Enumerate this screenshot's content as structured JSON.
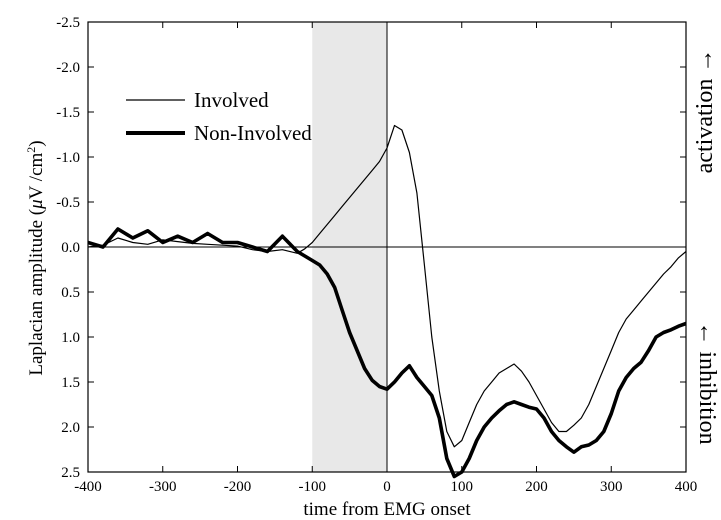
{
  "chart_data": {
    "type": "line",
    "xlabel": "time from EMG onset",
    "ylabel_prefix": "Laplacian amplitude (",
    "ylabel_mu": "μ",
    "ylabel_unit": "V /cm",
    "ylabel_sup": "2",
    "ylabel_suffix": ")",
    "xlim": [
      -400,
      400
    ],
    "ylim": [
      2.5,
      -2.5
    ],
    "y_inverted": true,
    "x_ticks": [
      "-400",
      "-300",
      "-200",
      "-100",
      "0",
      "100",
      "200",
      "300",
      "400"
    ],
    "y_ticks": [
      "-2.5",
      "-2.0",
      "-1.5",
      "-1.0",
      "-0.5",
      "0.0",
      "0.5",
      "1.0",
      "1.5",
      "2.0",
      "2.5"
    ],
    "shaded_region": [
      -100,
      0
    ],
    "reference_lines": {
      "x": 0,
      "y": 0
    },
    "legend_position": "top-left",
    "side_labels": {
      "top": "activation →",
      "bottom": "← inhibition"
    },
    "series": [
      {
        "name": "Involved",
        "style": "thin",
        "x": [
          -400,
          -380,
          -360,
          -340,
          -320,
          -300,
          -280,
          -260,
          -240,
          -220,
          -200,
          -180,
          -160,
          -140,
          -120,
          -110,
          -100,
          -90,
          -80,
          -70,
          -60,
          -50,
          -40,
          -30,
          -20,
          -10,
          0,
          10,
          20,
          30,
          40,
          50,
          60,
          70,
          80,
          90,
          100,
          110,
          120,
          130,
          140,
          150,
          160,
          170,
          180,
          190,
          200,
          210,
          220,
          230,
          240,
          250,
          260,
          270,
          280,
          290,
          300,
          310,
          320,
          330,
          340,
          350,
          360,
          370,
          380,
          390,
          400
        ],
        "values": [
          0.0,
          -0.02,
          -0.1,
          -0.05,
          -0.03,
          -0.08,
          -0.06,
          -0.04,
          -0.03,
          -0.02,
          -0.01,
          0.03,
          0.05,
          0.03,
          0.07,
          0.02,
          -0.05,
          -0.15,
          -0.25,
          -0.35,
          -0.45,
          -0.55,
          -0.65,
          -0.75,
          -0.85,
          -0.95,
          -1.1,
          -1.35,
          -1.3,
          -1.05,
          -0.6,
          0.2,
          1.0,
          1.6,
          2.05,
          2.22,
          2.15,
          1.95,
          1.75,
          1.6,
          1.5,
          1.4,
          1.35,
          1.3,
          1.38,
          1.5,
          1.65,
          1.8,
          1.95,
          2.05,
          2.05,
          1.98,
          1.9,
          1.75,
          1.55,
          1.35,
          1.15,
          0.95,
          0.8,
          0.7,
          0.6,
          0.5,
          0.4,
          0.3,
          0.22,
          0.12,
          0.05
        ]
      },
      {
        "name": "Non-Involved",
        "style": "thick",
        "x": [
          -400,
          -380,
          -360,
          -340,
          -320,
          -300,
          -280,
          -260,
          -240,
          -220,
          -200,
          -180,
          -160,
          -140,
          -120,
          -110,
          -100,
          -90,
          -80,
          -70,
          -60,
          -50,
          -40,
          -30,
          -20,
          -10,
          0,
          10,
          20,
          30,
          40,
          50,
          60,
          70,
          80,
          90,
          100,
          110,
          120,
          130,
          140,
          150,
          160,
          170,
          180,
          190,
          200,
          210,
          220,
          230,
          240,
          250,
          260,
          270,
          280,
          290,
          300,
          310,
          320,
          330,
          340,
          350,
          360,
          370,
          380,
          390,
          400
        ],
        "values": [
          -0.05,
          0.0,
          -0.2,
          -0.1,
          -0.18,
          -0.05,
          -0.12,
          -0.05,
          -0.15,
          -0.05,
          -0.05,
          0.0,
          0.05,
          -0.12,
          0.05,
          0.1,
          0.15,
          0.2,
          0.3,
          0.45,
          0.7,
          0.95,
          1.15,
          1.35,
          1.48,
          1.55,
          1.58,
          1.5,
          1.4,
          1.32,
          1.45,
          1.55,
          1.65,
          1.9,
          2.35,
          2.55,
          2.5,
          2.35,
          2.15,
          2.0,
          1.9,
          1.82,
          1.75,
          1.72,
          1.75,
          1.78,
          1.8,
          1.9,
          2.05,
          2.15,
          2.22,
          2.28,
          2.22,
          2.2,
          2.15,
          2.05,
          1.85,
          1.6,
          1.45,
          1.35,
          1.28,
          1.15,
          1.0,
          0.95,
          0.92,
          0.88,
          0.85
        ]
      }
    ]
  }
}
